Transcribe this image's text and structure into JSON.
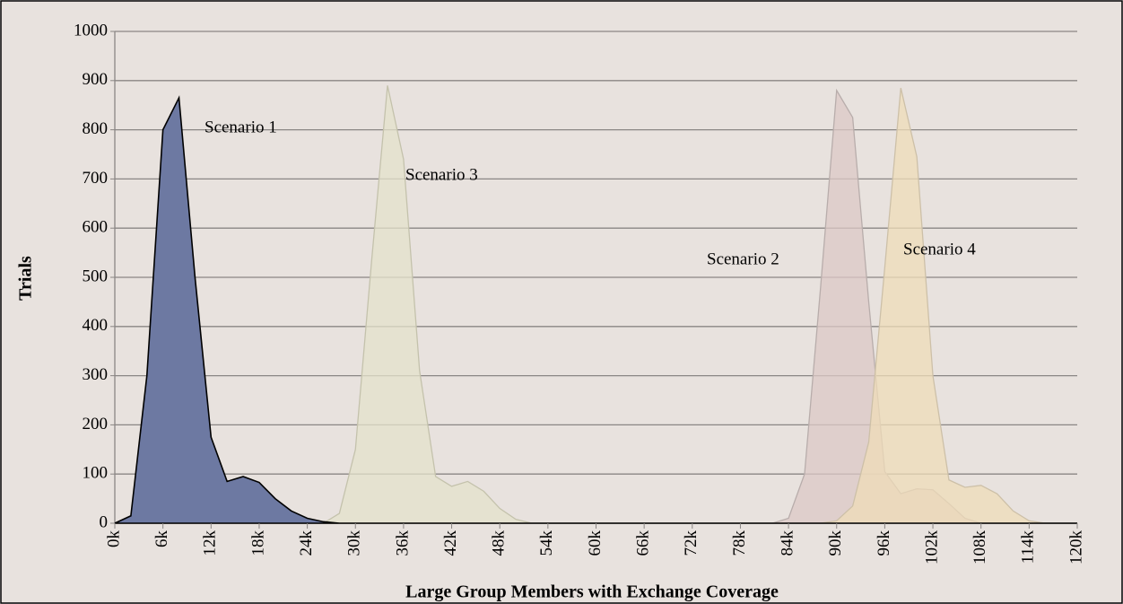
{
  "chart_data": {
    "type": "area",
    "x_label": "Large Group Members with Exchange Coverage",
    "y_label": "Trials",
    "x": [
      0,
      2000,
      4000,
      6000,
      8000,
      10000,
      12000,
      14000,
      16000,
      18000,
      20000,
      22000,
      24000,
      26000,
      28000,
      30000,
      32000,
      34000,
      36000,
      38000,
      40000,
      42000,
      44000,
      46000,
      48000,
      50000,
      52000,
      54000,
      56000,
      58000,
      60000,
      62000,
      64000,
      66000,
      68000,
      70000,
      72000,
      74000,
      76000,
      78000,
      80000,
      82000,
      84000,
      86000,
      88000,
      90000,
      92000,
      94000,
      96000,
      98000,
      100000,
      102000,
      104000,
      106000,
      108000,
      110000,
      112000,
      114000,
      116000,
      118000,
      120000
    ],
    "series": [
      {
        "name": "Scenario 1",
        "color": "#6d79a2",
        "stroke": "#000000",
        "values": [
          0,
          15,
          300,
          800,
          865,
          500,
          175,
          85,
          95,
          83,
          50,
          25,
          10,
          3,
          0,
          0,
          0,
          0,
          0,
          0,
          0,
          0,
          0,
          0,
          0,
          0,
          0,
          0,
          0,
          0,
          0,
          0,
          0,
          0,
          0,
          0,
          0,
          0,
          0,
          0,
          0,
          0,
          0,
          0,
          0,
          0,
          0,
          0,
          0,
          0,
          0,
          0,
          0,
          0,
          0,
          0,
          0,
          0,
          0,
          0,
          0
        ]
      },
      {
        "name": "Scenario 2",
        "color": "#dcc8c6",
        "stroke": "#b8adab",
        "values": [
          0,
          0,
          0,
          0,
          0,
          0,
          0,
          0,
          0,
          0,
          0,
          0,
          0,
          0,
          0,
          0,
          0,
          0,
          0,
          0,
          0,
          0,
          0,
          0,
          0,
          0,
          0,
          0,
          0,
          0,
          0,
          0,
          0,
          0,
          0,
          0,
          0,
          0,
          0,
          0,
          0,
          0,
          10,
          100,
          480,
          880,
          825,
          450,
          105,
          60,
          70,
          68,
          40,
          10,
          0,
          0,
          0,
          0,
          0,
          0,
          0
        ]
      },
      {
        "name": "Scenario 3",
        "color": "#e4e2cb",
        "stroke": "#c4c2ac",
        "values": [
          0,
          0,
          0,
          0,
          0,
          0,
          0,
          0,
          0,
          0,
          0,
          0,
          0,
          0,
          20,
          150,
          530,
          890,
          740,
          310,
          95,
          75,
          85,
          65,
          30,
          8,
          0,
          0,
          0,
          0,
          0,
          0,
          0,
          0,
          0,
          0,
          0,
          0,
          0,
          0,
          0,
          0,
          0,
          0,
          0,
          0,
          0,
          0,
          0,
          0,
          0,
          0,
          0,
          0,
          0,
          0,
          0,
          0,
          0,
          0,
          0
        ]
      },
      {
        "name": "Scenario 4",
        "color": "#efdcb8",
        "stroke": "#cdc0a8",
        "values": [
          0,
          0,
          0,
          0,
          0,
          0,
          0,
          0,
          0,
          0,
          0,
          0,
          0,
          0,
          0,
          0,
          0,
          0,
          0,
          0,
          0,
          0,
          0,
          0,
          0,
          0,
          0,
          0,
          0,
          0,
          0,
          0,
          0,
          0,
          0,
          0,
          0,
          0,
          0,
          0,
          0,
          0,
          0,
          0,
          0,
          5,
          35,
          165,
          520,
          885,
          745,
          300,
          88,
          73,
          77,
          60,
          25,
          5,
          0,
          0,
          0
        ]
      }
    ],
    "xlim": [
      0,
      120000
    ],
    "xticks": [
      {
        "value": 0,
        "label": "0k"
      },
      {
        "value": 6000,
        "label": "6k"
      },
      {
        "value": 12000,
        "label": "12k"
      },
      {
        "value": 18000,
        "label": "18k"
      },
      {
        "value": 24000,
        "label": "24k"
      },
      {
        "value": 30000,
        "label": "30k"
      },
      {
        "value": 36000,
        "label": "36k"
      },
      {
        "value": 42000,
        "label": "42k"
      },
      {
        "value": 48000,
        "label": "48k"
      },
      {
        "value": 54000,
        "label": "54k"
      },
      {
        "value": 60000,
        "label": "60k"
      },
      {
        "value": 66000,
        "label": "66k"
      },
      {
        "value": 72000,
        "label": "72k"
      },
      {
        "value": 78000,
        "label": "78k"
      },
      {
        "value": 84000,
        "label": "84k"
      },
      {
        "value": 90000,
        "label": "90k"
      },
      {
        "value": 96000,
        "label": "96k"
      },
      {
        "value": 102000,
        "label": "102k"
      },
      {
        "value": 108000,
        "label": "108k"
      },
      {
        "value": 114000,
        "label": "114k"
      },
      {
        "value": 120000,
        "label": "120k"
      }
    ],
    "ylim": [
      0,
      1000
    ],
    "yticks": [
      0,
      100,
      200,
      300,
      400,
      500,
      600,
      700,
      800,
      900,
      1000
    ],
    "grid": true
  }
}
